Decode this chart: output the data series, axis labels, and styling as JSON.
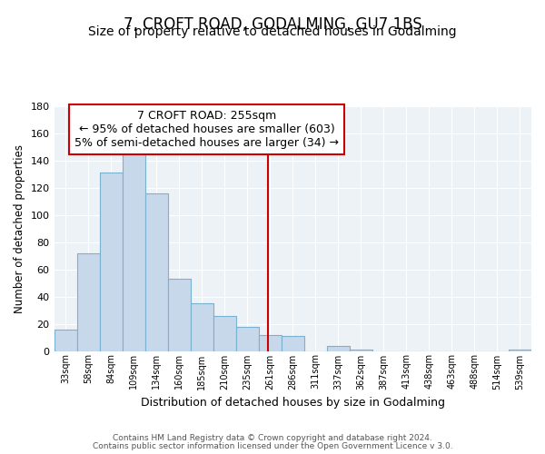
{
  "title": "7, CROFT ROAD, GODALMING, GU7 1BS",
  "subtitle": "Size of property relative to detached houses in Godalming",
  "xlabel": "Distribution of detached houses by size in Godalming",
  "ylabel": "Number of detached properties",
  "bar_labels": [
    "33sqm",
    "58sqm",
    "84sqm",
    "109sqm",
    "134sqm",
    "160sqm",
    "185sqm",
    "210sqm",
    "235sqm",
    "261sqm",
    "286sqm",
    "311sqm",
    "337sqm",
    "362sqm",
    "387sqm",
    "413sqm",
    "438sqm",
    "463sqm",
    "488sqm",
    "514sqm",
    "539sqm"
  ],
  "bar_heights": [
    16,
    72,
    131,
    147,
    116,
    53,
    35,
    26,
    18,
    12,
    11,
    0,
    4,
    1,
    0,
    0,
    0,
    0,
    0,
    0,
    1
  ],
  "bar_color": "#c8d8eb",
  "bar_edge_color": "#7ab0d0",
  "ylim": [
    0,
    180
  ],
  "yticks": [
    0,
    20,
    40,
    60,
    80,
    100,
    120,
    140,
    160,
    180
  ],
  "vline_color": "#cc0000",
  "annotation_title": "7 CROFT ROAD: 255sqm",
  "annotation_line1": "← 95% of detached houses are smaller (603)",
  "annotation_line2": "5% of semi-detached houses are larger (34) →",
  "annotation_box_color": "#cc0000",
  "footer1": "Contains HM Land Registry data © Crown copyright and database right 2024.",
  "footer2": "Contains public sector information licensed under the Open Government Licence v 3.0.",
  "background_color": "#edf2f7",
  "grid_color": "#d0d8e0",
  "title_fontsize": 12,
  "subtitle_fontsize": 10,
  "annotation_fontsize": 9
}
